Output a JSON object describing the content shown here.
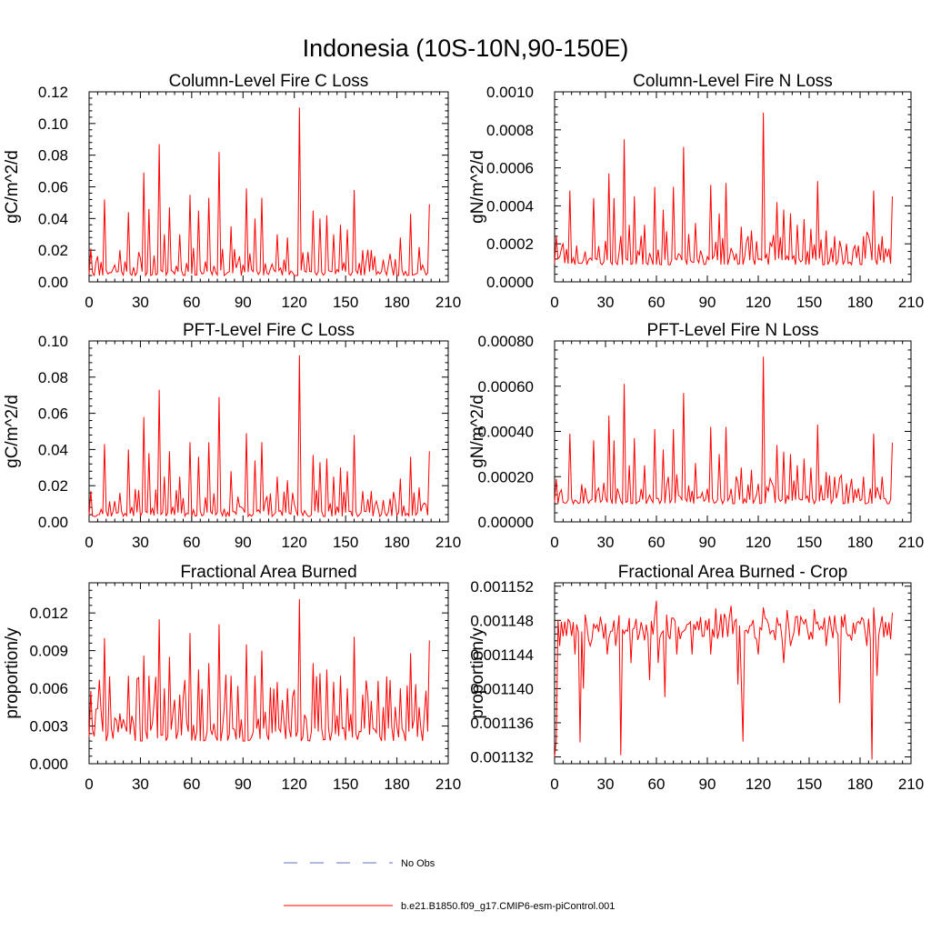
{
  "title": "Indonesia (10S-10N,90-150E)",
  "series_color": "#ff0000",
  "obs_color": "#6670b8",
  "legend": {
    "obs_label": "No Obs",
    "model_label": "b.e21.B1850.f09_g17.CMIP6-esm-piControl.001"
  },
  "chart_data": [
    {
      "type": "line",
      "title": "Column-Level Fire C Loss",
      "ylabel": "gC/m^2/d",
      "xlim": [
        0,
        210
      ],
      "xticks": [
        "0",
        "30",
        "60",
        "90",
        "120",
        "150",
        "180",
        "210"
      ],
      "ylim": [
        0,
        0.12
      ],
      "yticks": [
        "0.00",
        "0.02",
        "0.04",
        "0.06",
        "0.08",
        "0.10",
        "0.12"
      ],
      "peaks": [
        [
          1,
          0.021
        ],
        [
          9,
          0.052
        ],
        [
          18,
          0.02
        ],
        [
          23,
          0.044
        ],
        [
          32,
          0.069
        ],
        [
          35,
          0.046
        ],
        [
          41,
          0.087
        ],
        [
          44,
          0.03
        ],
        [
          47,
          0.047
        ],
        [
          53,
          0.03
        ],
        [
          59,
          0.055
        ],
        [
          64,
          0.045
        ],
        [
          70,
          0.053
        ],
        [
          76,
          0.082
        ],
        [
          83,
          0.035
        ],
        [
          92,
          0.059
        ],
        [
          97,
          0.04
        ],
        [
          101,
          0.053
        ],
        [
          110,
          0.03
        ],
        [
          116,
          0.028
        ],
        [
          123,
          0.11
        ],
        [
          131,
          0.045
        ],
        [
          135,
          0.04
        ],
        [
          139,
          0.042
        ],
        [
          143,
          0.03
        ],
        [
          147,
          0.036
        ],
        [
          151,
          0.033
        ],
        [
          155,
          0.058
        ],
        [
          160,
          0.02
        ],
        [
          165,
          0.02
        ],
        [
          172,
          0.014
        ],
        [
          182,
          0.028
        ],
        [
          188,
          0.043
        ],
        [
          193,
          0.022
        ],
        [
          199,
          0.049
        ]
      ],
      "base": 0.004,
      "noise": 0.008,
      "seed": 11
    },
    {
      "type": "line",
      "title": "Column-Level Fire N Loss",
      "ylabel": "gN/m^2/d",
      "xlim": [
        0,
        210
      ],
      "xticks": [
        "0",
        "30",
        "60",
        "90",
        "120",
        "150",
        "180",
        "210"
      ],
      "ylim": [
        0,
        0.001
      ],
      "yticks": [
        "0.0000",
        "0.0002",
        "0.0004",
        "0.0006",
        "0.0008",
        "0.0010"
      ],
      "peaks": [
        [
          1,
          0.00024
        ],
        [
          9,
          0.00048
        ],
        [
          18,
          0.00016
        ],
        [
          23,
          0.00044
        ],
        [
          32,
          0.00057
        ],
        [
          35,
          0.00044
        ],
        [
          41,
          0.00075
        ],
        [
          44,
          0.0003
        ],
        [
          47,
          0.00045
        ],
        [
          53,
          0.0003
        ],
        [
          59,
          0.0005
        ],
        [
          64,
          0.00038
        ],
        [
          70,
          0.0005
        ],
        [
          76,
          0.00071
        ],
        [
          83,
          0.00031
        ],
        [
          92,
          0.00051
        ],
        [
          97,
          0.00036
        ],
        [
          101,
          0.00052
        ],
        [
          110,
          0.00029
        ],
        [
          116,
          0.00027
        ],
        [
          123,
          0.00089
        ],
        [
          131,
          0.00042
        ],
        [
          135,
          0.00038
        ],
        [
          139,
          0.00036
        ],
        [
          143,
          0.0003
        ],
        [
          147,
          0.00033
        ],
        [
          151,
          0.00028
        ],
        [
          155,
          0.00053
        ],
        [
          160,
          0.00027
        ],
        [
          165,
          0.00024
        ],
        [
          172,
          0.0002
        ],
        [
          182,
          0.00024
        ],
        [
          188,
          0.00048
        ],
        [
          193,
          0.00024
        ],
        [
          199,
          0.00045
        ]
      ],
      "base": 9e-05,
      "noise": 8e-05,
      "seed": 23
    },
    {
      "type": "line",
      "title": "PFT-Level Fire C Loss",
      "ylabel": "gC/m^2/d",
      "xlim": [
        0,
        210
      ],
      "xticks": [
        "0",
        "30",
        "60",
        "90",
        "120",
        "150",
        "180",
        "210"
      ],
      "ylim": [
        0,
        0.1
      ],
      "yticks": [
        "0.00",
        "0.02",
        "0.04",
        "0.06",
        "0.08",
        "0.10"
      ],
      "peaks": [
        [
          1,
          0.017
        ],
        [
          9,
          0.043
        ],
        [
          18,
          0.016
        ],
        [
          23,
          0.04
        ],
        [
          32,
          0.058
        ],
        [
          35,
          0.038
        ],
        [
          41,
          0.073
        ],
        [
          44,
          0.025
        ],
        [
          47,
          0.039
        ],
        [
          53,
          0.025
        ],
        [
          59,
          0.044
        ],
        [
          64,
          0.036
        ],
        [
          70,
          0.044
        ],
        [
          76,
          0.069
        ],
        [
          83,
          0.028
        ],
        [
          92,
          0.049
        ],
        [
          97,
          0.034
        ],
        [
          101,
          0.044
        ],
        [
          110,
          0.025
        ],
        [
          116,
          0.023
        ],
        [
          123,
          0.092
        ],
        [
          131,
          0.037
        ],
        [
          135,
          0.033
        ],
        [
          139,
          0.035
        ],
        [
          143,
          0.025
        ],
        [
          147,
          0.03
        ],
        [
          151,
          0.028
        ],
        [
          155,
          0.048
        ],
        [
          160,
          0.017
        ],
        [
          165,
          0.017
        ],
        [
          172,
          0.012
        ],
        [
          182,
          0.024
        ],
        [
          188,
          0.036
        ],
        [
          193,
          0.019
        ],
        [
          199,
          0.039
        ]
      ],
      "base": 0.003,
      "noise": 0.007,
      "seed": 37
    },
    {
      "type": "line",
      "title": "PFT-Level Fire N Loss",
      "ylabel": "gN/m^2/d",
      "xlim": [
        0,
        210
      ],
      "xticks": [
        "0",
        "30",
        "60",
        "90",
        "120",
        "150",
        "180",
        "210"
      ],
      "ylim": [
        0,
        0.0008
      ],
      "yticks": [
        "0.00000",
        "0.00020",
        "0.00040",
        "0.00060",
        "0.00080"
      ],
      "peaks": [
        [
          1,
          0.00019
        ],
        [
          9,
          0.00039
        ],
        [
          18,
          0.00015
        ],
        [
          23,
          0.00036
        ],
        [
          32,
          0.00047
        ],
        [
          35,
          0.00036
        ],
        [
          41,
          0.00061
        ],
        [
          44,
          0.00025
        ],
        [
          47,
          0.00037
        ],
        [
          53,
          0.00025
        ],
        [
          59,
          0.00041
        ],
        [
          64,
          0.00032
        ],
        [
          70,
          0.00041
        ],
        [
          76,
          0.00057
        ],
        [
          83,
          0.00026
        ],
        [
          92,
          0.00042
        ],
        [
          97,
          0.0003
        ],
        [
          101,
          0.00042
        ],
        [
          110,
          0.00024
        ],
        [
          116,
          0.00023
        ],
        [
          123,
          0.00073
        ],
        [
          131,
          0.00034
        ],
        [
          135,
          0.00031
        ],
        [
          139,
          0.0003
        ],
        [
          143,
          0.00025
        ],
        [
          147,
          0.00028
        ],
        [
          151,
          0.00024
        ],
        [
          155,
          0.00043
        ],
        [
          160,
          0.00022
        ],
        [
          165,
          0.0002
        ],
        [
          172,
          0.00017
        ],
        [
          182,
          0.0002
        ],
        [
          188,
          0.00039
        ],
        [
          193,
          0.0002
        ],
        [
          199,
          0.00035
        ]
      ],
      "base": 8e-05,
      "noise": 6e-05,
      "seed": 53
    },
    {
      "type": "line",
      "title": "Fractional Area Burned",
      "ylabel": "proportion/y",
      "xlim": [
        0,
        210
      ],
      "xticks": [
        "0",
        "30",
        "60",
        "90",
        "120",
        "150",
        "180",
        "210"
      ],
      "ylim": [
        0,
        0.0144
      ],
      "yticks": [
        "0.000",
        "0.003",
        "0.006",
        "0.009",
        "0.012"
      ],
      "ytick_values": [
        0,
        0.003,
        0.006,
        0.009,
        0.012
      ],
      "peaks": [
        [
          1,
          0.0058
        ],
        [
          9,
          0.01
        ],
        [
          18,
          0.004
        ],
        [
          23,
          0.007
        ],
        [
          32,
          0.0086
        ],
        [
          35,
          0.007
        ],
        [
          41,
          0.0115
        ],
        [
          44,
          0.006
        ],
        [
          47,
          0.0085
        ],
        [
          53,
          0.0055
        ],
        [
          59,
          0.0104
        ],
        [
          64,
          0.0075
        ],
        [
          70,
          0.008
        ],
        [
          76,
          0.0111
        ],
        [
          83,
          0.007
        ],
        [
          92,
          0.0095
        ],
        [
          97,
          0.007
        ],
        [
          101,
          0.009
        ],
        [
          110,
          0.0065
        ],
        [
          116,
          0.006
        ],
        [
          123,
          0.0131
        ],
        [
          131,
          0.008
        ],
        [
          135,
          0.0072
        ],
        [
          139,
          0.0075
        ],
        [
          143,
          0.0065
        ],
        [
          147,
          0.007
        ],
        [
          151,
          0.006
        ],
        [
          155,
          0.0101
        ],
        [
          160,
          0.0055
        ],
        [
          165,
          0.005
        ],
        [
          172,
          0.0045
        ],
        [
          182,
          0.006
        ],
        [
          188,
          0.0088
        ],
        [
          193,
          0.0045
        ],
        [
          199,
          0.0098
        ]
      ],
      "base": 0.0018,
      "noise": 0.0025,
      "seed": 71
    },
    {
      "type": "line",
      "title": "Fractional Area Burned - Crop",
      "ylabel": "proportion/y",
      "xlim": [
        0,
        210
      ],
      "xticks": [
        "0",
        "30",
        "60",
        "90",
        "120",
        "150",
        "180",
        "210"
      ],
      "ylim": [
        0.0011312,
        0.0011524
      ],
      "yticks": [
        "0.001132",
        "0.001136",
        "0.001140",
        "0.001144",
        "0.001148",
        "0.001152"
      ],
      "ytick_values": [
        0.001132,
        0.001136,
        0.00114,
        0.001144,
        0.001148,
        0.001152
      ],
      "base_value": 0.0011472,
      "noise": 1.6e-06,
      "dips": [
        [
          0,
          0.001132
        ],
        [
          1,
          0.001134
        ],
        [
          3,
          0.001145
        ],
        [
          12,
          0.001144
        ],
        [
          15,
          0.0011337
        ],
        [
          17,
          0.00114
        ],
        [
          21,
          0.001145
        ],
        [
          31,
          0.001144
        ],
        [
          36,
          0.001145
        ],
        [
          39,
          0.0011322
        ],
        [
          45,
          0.001143
        ],
        [
          56,
          0.001141
        ],
        [
          61,
          0.001143
        ],
        [
          65,
          0.001139
        ],
        [
          72,
          0.001144
        ],
        [
          81,
          0.001144
        ],
        [
          92,
          0.001144
        ],
        [
          108,
          0.0011405
        ],
        [
          110,
          0.001141
        ],
        [
          111,
          0.0011338
        ],
        [
          120,
          0.001144
        ],
        [
          135,
          0.001143
        ],
        [
          139,
          0.001145
        ],
        [
          160,
          0.001145
        ],
        [
          168,
          0.0011383
        ],
        [
          184,
          0.001145
        ],
        [
          187,
          0.0011317
        ],
        [
          190,
          0.0011415
        ],
        [
          194,
          0.001146
        ]
      ],
      "highs": [
        [
          60,
          0.0011503
        ],
        [
          95,
          0.0011494
        ],
        [
          104,
          0.0011497
        ],
        [
          123,
          0.0011495
        ],
        [
          137,
          0.0011492
        ],
        [
          153,
          0.0011493
        ],
        [
          188,
          0.0011495
        ],
        [
          199,
          0.0011489
        ]
      ],
      "seed": 89
    }
  ]
}
